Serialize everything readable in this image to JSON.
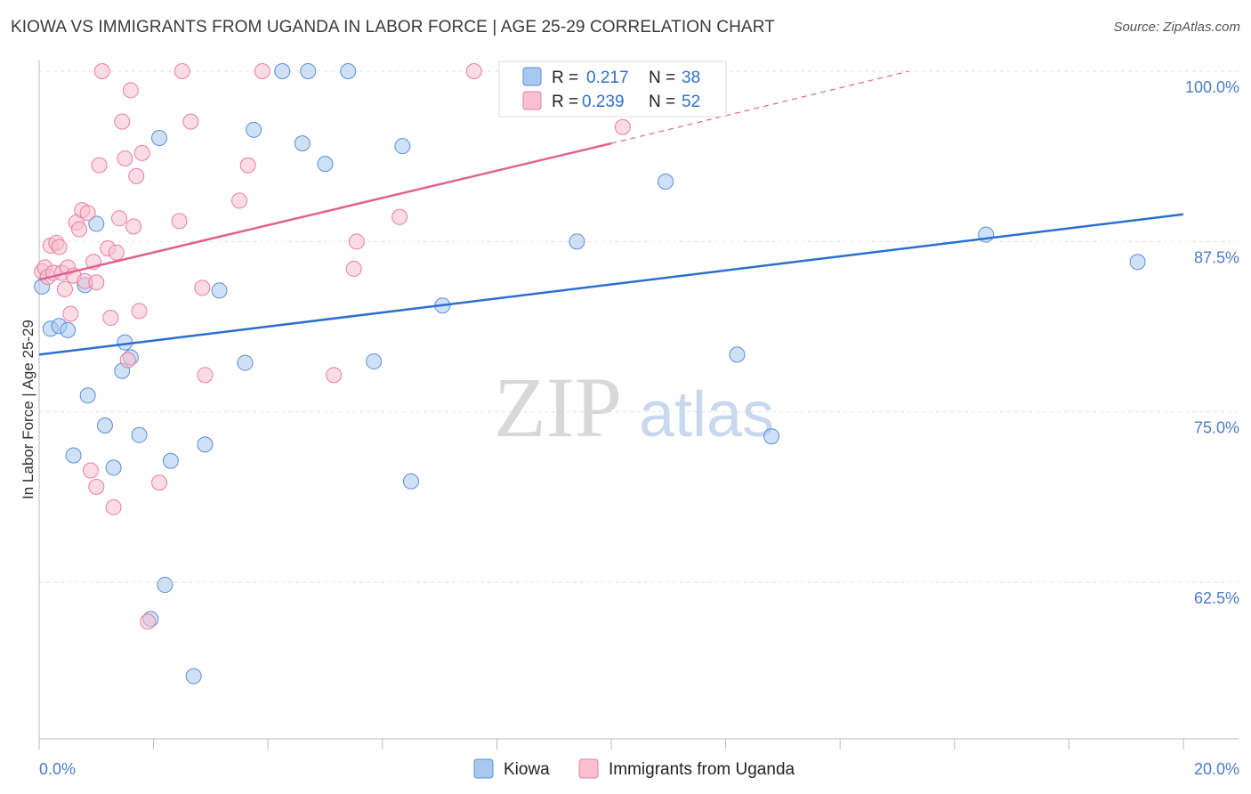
{
  "title": "KIOWA VS IMMIGRANTS FROM UGANDA IN LABOR FORCE | AGE 25-29 CORRELATION CHART",
  "source": "Source: ZipAtlas.com",
  "watermark": {
    "zip": "ZIP",
    "atlas": "atlas"
  },
  "chart_data": {
    "type": "scatter",
    "title": "KIOWA VS IMMIGRANTS FROM UGANDA IN LABOR FORCE | AGE 25-29 CORRELATION CHART",
    "ylabel": "In Labor Force | Age 25-29",
    "xlabel": "",
    "xlim": [
      0,
      20
    ],
    "ylim": [
      50,
      101
    ],
    "x_tick_labels": [
      "0.0%",
      "20.0%"
    ],
    "y_ticks": [
      100,
      87.5,
      75,
      62.5
    ],
    "y_tick_labels": [
      "100.0%",
      "87.5%",
      "75.0%",
      "62.5%"
    ],
    "grid": true,
    "legend": {
      "r_label": "R =",
      "n_label": "N =",
      "entries": [
        {
          "r": "0.217",
          "n": "38"
        },
        {
          "r": "0.239",
          "n": "52"
        }
      ]
    },
    "series": [
      {
        "name": "Kiowa",
        "color": "#a8c8f0",
        "stroke": "#5b8ed6",
        "line_color": "#2a6fd0",
        "trend": {
          "x": [
            0,
            20
          ],
          "y": [
            79.2,
            89.5
          ],
          "dashed_to": null
        },
        "points": [
          {
            "x": 0.05,
            "y": 84.2
          },
          {
            "x": 0.2,
            "y": 81.1
          },
          {
            "x": 0.35,
            "y": 81.3
          },
          {
            "x": 0.5,
            "y": 81.0
          },
          {
            "x": 0.6,
            "y": 71.8
          },
          {
            "x": 0.8,
            "y": 84.3
          },
          {
            "x": 0.85,
            "y": 76.2
          },
          {
            "x": 1.0,
            "y": 88.8
          },
          {
            "x": 1.15,
            "y": 74.0
          },
          {
            "x": 1.3,
            "y": 70.9
          },
          {
            "x": 1.45,
            "y": 78.0
          },
          {
            "x": 1.5,
            "y": 80.1
          },
          {
            "x": 1.6,
            "y": 79.0
          },
          {
            "x": 1.75,
            "y": 73.3
          },
          {
            "x": 1.95,
            "y": 59.8
          },
          {
            "x": 2.1,
            "y": 95.1
          },
          {
            "x": 2.2,
            "y": 62.3
          },
          {
            "x": 2.3,
            "y": 71.4
          },
          {
            "x": 2.7,
            "y": 55.6
          },
          {
            "x": 2.9,
            "y": 72.6
          },
          {
            "x": 3.15,
            "y": 83.9
          },
          {
            "x": 3.6,
            "y": 78.6
          },
          {
            "x": 3.75,
            "y": 95.7
          },
          {
            "x": 4.25,
            "y": 100.0
          },
          {
            "x": 4.6,
            "y": 94.7
          },
          {
            "x": 4.7,
            "y": 100.0
          },
          {
            "x": 5.0,
            "y": 93.2
          },
          {
            "x": 5.4,
            "y": 100.0
          },
          {
            "x": 5.85,
            "y": 78.7
          },
          {
            "x": 6.35,
            "y": 94.5
          },
          {
            "x": 6.5,
            "y": 69.9
          },
          {
            "x": 7.05,
            "y": 82.8
          },
          {
            "x": 9.4,
            "y": 87.5
          },
          {
            "x": 10.95,
            "y": 91.9
          },
          {
            "x": 12.2,
            "y": 79.2
          },
          {
            "x": 12.8,
            "y": 73.2
          },
          {
            "x": 16.55,
            "y": 88.0
          },
          {
            "x": 19.2,
            "y": 86.0
          }
        ]
      },
      {
        "name": "Immigrants from Uganda",
        "color": "#f8c0d0",
        "stroke": "#e87fa0",
        "line_color": "#e0628e",
        "trend": {
          "x": [
            0,
            10
          ],
          "y": [
            84.7,
            94.7
          ],
          "dashed_to": {
            "x": 15.2,
            "y": 100
          }
        },
        "points": [
          {
            "x": 0.05,
            "y": 85.3
          },
          {
            "x": 0.1,
            "y": 85.6
          },
          {
            "x": 0.15,
            "y": 84.9
          },
          {
            "x": 0.2,
            "y": 87.2
          },
          {
            "x": 0.25,
            "y": 85.2
          },
          {
            "x": 0.3,
            "y": 87.4
          },
          {
            "x": 0.35,
            "y": 87.1
          },
          {
            "x": 0.4,
            "y": 85.2
          },
          {
            "x": 0.45,
            "y": 84.0
          },
          {
            "x": 0.5,
            "y": 85.6
          },
          {
            "x": 0.55,
            "y": 82.2
          },
          {
            "x": 0.6,
            "y": 85.0
          },
          {
            "x": 0.65,
            "y": 88.9
          },
          {
            "x": 0.7,
            "y": 88.4
          },
          {
            "x": 0.75,
            "y": 89.8
          },
          {
            "x": 0.8,
            "y": 84.6
          },
          {
            "x": 0.85,
            "y": 89.6
          },
          {
            "x": 0.9,
            "y": 70.7
          },
          {
            "x": 0.95,
            "y": 86.0
          },
          {
            "x": 1.0,
            "y": 69.5
          },
          {
            "x": 1.05,
            "y": 93.1
          },
          {
            "x": 1.1,
            "y": 100.0
          },
          {
            "x": 1.2,
            "y": 87.0
          },
          {
            "x": 1.25,
            "y": 81.9
          },
          {
            "x": 1.3,
            "y": 68.0
          },
          {
            "x": 1.35,
            "y": 86.7
          },
          {
            "x": 1.4,
            "y": 89.2
          },
          {
            "x": 1.45,
            "y": 96.3
          },
          {
            "x": 1.5,
            "y": 93.6
          },
          {
            "x": 1.55,
            "y": 78.8
          },
          {
            "x": 1.6,
            "y": 98.6
          },
          {
            "x": 1.65,
            "y": 88.6
          },
          {
            "x": 1.7,
            "y": 92.3
          },
          {
            "x": 1.75,
            "y": 82.4
          },
          {
            "x": 1.8,
            "y": 94.0
          },
          {
            "x": 1.9,
            "y": 59.6
          },
          {
            "x": 2.1,
            "y": 69.8
          },
          {
            "x": 2.45,
            "y": 89.0
          },
          {
            "x": 2.5,
            "y": 100.0
          },
          {
            "x": 2.65,
            "y": 96.3
          },
          {
            "x": 2.85,
            "y": 84.1
          },
          {
            "x": 2.9,
            "y": 77.7
          },
          {
            "x": 3.5,
            "y": 90.5
          },
          {
            "x": 3.65,
            "y": 93.1
          },
          {
            "x": 3.9,
            "y": 100.0
          },
          {
            "x": 5.15,
            "y": 77.7
          },
          {
            "x": 5.5,
            "y": 85.5
          },
          {
            "x": 5.55,
            "y": 87.5
          },
          {
            "x": 6.3,
            "y": 89.3
          },
          {
            "x": 7.6,
            "y": 100.0
          },
          {
            "x": 10.2,
            "y": 95.9
          },
          {
            "x": 1.0,
            "y": 84.5
          }
        ]
      }
    ]
  }
}
